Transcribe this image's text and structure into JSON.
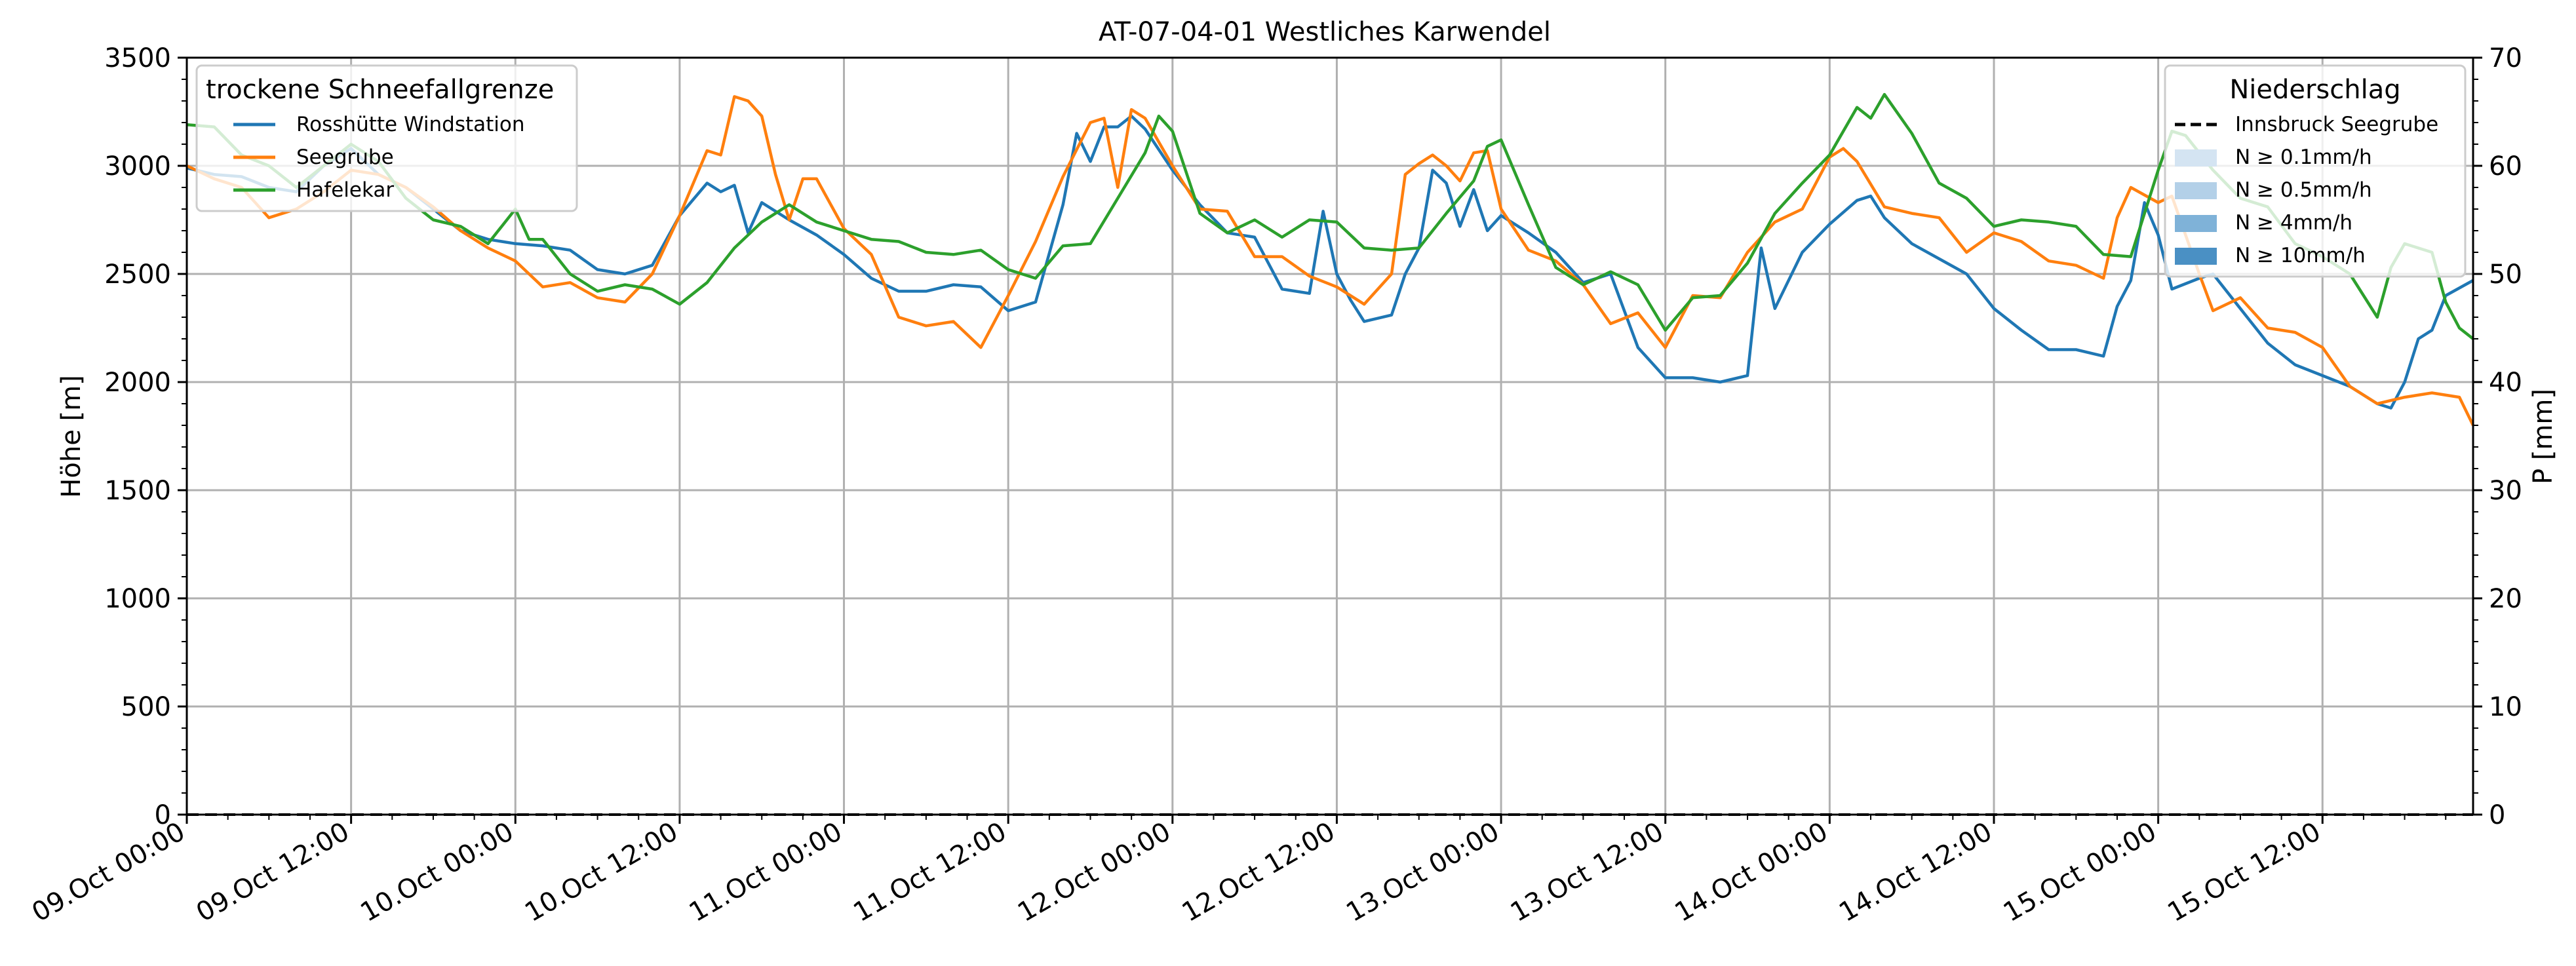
{
  "chart_data": {
    "type": "line",
    "title": "AT-07-04-01 Westliches Karwendel",
    "ylabel": "Höhe [m]",
    "y2label": "P [mm]",
    "ylim": [
      0,
      3500
    ],
    "y2lim": [
      0,
      70
    ],
    "yticks": [
      0,
      500,
      1000,
      1500,
      2000,
      2500,
      3000,
      3500
    ],
    "y2ticks": [
      0,
      10,
      20,
      30,
      40,
      50,
      60,
      70
    ],
    "xlim_hours": [
      0,
      167
    ],
    "xticks": [
      {
        "h": 0,
        "label": "09.Oct 00:00"
      },
      {
        "h": 12,
        "label": "09.Oct 12:00"
      },
      {
        "h": 24,
        "label": "10.Oct 00:00"
      },
      {
        "h": 36,
        "label": "10.Oct 12:00"
      },
      {
        "h": 48,
        "label": "11.Oct 00:00"
      },
      {
        "h": 60,
        "label": "11.Oct 12:00"
      },
      {
        "h": 72,
        "label": "12.Oct 00:00"
      },
      {
        "h": 84,
        "label": "12.Oct 12:00"
      },
      {
        "h": 96,
        "label": "13.Oct 00:00"
      },
      {
        "h": 108,
        "label": "13.Oct 12:00"
      },
      {
        "h": 120,
        "label": "14.Oct 00:00"
      },
      {
        "h": 132,
        "label": "14.Oct 12:00"
      },
      {
        "h": 144,
        "label": "15.Oct 00:00"
      },
      {
        "h": 156,
        "label": "15.Oct 12:00"
      }
    ],
    "grid": true,
    "legend_left": {
      "title": "trockene Schneefallgrenze",
      "placement": "top-left",
      "entries": [
        "Rosshütte Windstation",
        "Seegrube",
        "Hafelekar"
      ]
    },
    "legend_right": {
      "title": "Niederschlag",
      "placement": "top-right",
      "entries": [
        {
          "label": "Innsbruck Seegrube",
          "style": "dashed",
          "color": "#000000"
        },
        {
          "label": "N ≥ 0.1mm/h",
          "color": "#d4e4f2"
        },
        {
          "label": "N ≥ 0.5mm/h",
          "color": "#b3d0e8"
        },
        {
          "label": "N ≥ 4mm/h",
          "color": "#7fb2d8"
        },
        {
          "label": "N ≥ 10mm/h",
          "color": "#4a90c4"
        }
      ]
    },
    "precipitation": {
      "name": "Innsbruck Seegrube",
      "values_mm": [
        0,
        0
      ]
    },
    "series": [
      {
        "name": "Rosshütte Windstation",
        "color": "#1f77b4",
        "points": [
          [
            0,
            2990
          ],
          [
            2,
            2960
          ],
          [
            4,
            2950
          ],
          [
            6,
            2900
          ],
          [
            8,
            2880
          ],
          [
            10,
            3000
          ],
          [
            12,
            3080
          ],
          [
            14,
            2960
          ],
          [
            16,
            2900
          ],
          [
            18,
            2800
          ],
          [
            20,
            2700
          ],
          [
            22,
            2660
          ],
          [
            24,
            2640
          ],
          [
            26,
            2630
          ],
          [
            28,
            2610
          ],
          [
            30,
            2520
          ],
          [
            32,
            2500
          ],
          [
            34,
            2540
          ],
          [
            36,
            2770
          ],
          [
            38,
            2920
          ],
          [
            39,
            2880
          ],
          [
            40,
            2910
          ],
          [
            41,
            2690
          ],
          [
            42,
            2830
          ],
          [
            44,
            2750
          ],
          [
            46,
            2680
          ],
          [
            48,
            2590
          ],
          [
            50,
            2480
          ],
          [
            52,
            2420
          ],
          [
            54,
            2420
          ],
          [
            56,
            2450
          ],
          [
            58,
            2440
          ],
          [
            60,
            2330
          ],
          [
            62,
            2370
          ],
          [
            64,
            2820
          ],
          [
            65,
            3150
          ],
          [
            66,
            3020
          ],
          [
            67,
            3180
          ],
          [
            68,
            3180
          ],
          [
            69,
            3230
          ],
          [
            70,
            3170
          ],
          [
            72,
            2980
          ],
          [
            74,
            2820
          ],
          [
            76,
            2690
          ],
          [
            78,
            2670
          ],
          [
            80,
            2430
          ],
          [
            82,
            2410
          ],
          [
            83,
            2790
          ],
          [
            84,
            2500
          ],
          [
            85,
            2380
          ],
          [
            86,
            2280
          ],
          [
            88,
            2310
          ],
          [
            89,
            2500
          ],
          [
            90,
            2620
          ],
          [
            91,
            2980
          ],
          [
            92,
            2920
          ],
          [
            93,
            2720
          ],
          [
            94,
            2890
          ],
          [
            95,
            2700
          ],
          [
            96,
            2770
          ],
          [
            98,
            2690
          ],
          [
            100,
            2600
          ],
          [
            102,
            2460
          ],
          [
            104,
            2500
          ],
          [
            106,
            2160
          ],
          [
            108,
            2020
          ],
          [
            110,
            2020
          ],
          [
            112,
            2000
          ],
          [
            114,
            2030
          ],
          [
            115,
            2620
          ],
          [
            116,
            2340
          ],
          [
            118,
            2600
          ],
          [
            120,
            2730
          ],
          [
            122,
            2840
          ],
          [
            123,
            2860
          ],
          [
            124,
            2760
          ],
          [
            126,
            2640
          ],
          [
            128,
            2570
          ],
          [
            130,
            2500
          ],
          [
            132,
            2340
          ],
          [
            134,
            2240
          ],
          [
            136,
            2150
          ],
          [
            138,
            2150
          ],
          [
            140,
            2120
          ],
          [
            141,
            2350
          ],
          [
            142,
            2470
          ],
          [
            143,
            2830
          ],
          [
            144,
            2680
          ],
          [
            145,
            2430
          ],
          [
            147,
            2480
          ],
          [
            148,
            2500
          ],
          [
            150,
            2340
          ],
          [
            152,
            2180
          ],
          [
            154,
            2080
          ],
          [
            156,
            2030
          ],
          [
            158,
            1980
          ],
          [
            160,
            1900
          ],
          [
            161,
            1880
          ],
          [
            162,
            2000
          ],
          [
            163,
            2200
          ],
          [
            164,
            2240
          ],
          [
            165,
            2400
          ],
          [
            167,
            2470
          ]
        ]
      },
      {
        "name": "Seegrube",
        "color": "#ff7f0e",
        "points": [
          [
            0,
            3000
          ],
          [
            2,
            2940
          ],
          [
            4,
            2900
          ],
          [
            6,
            2760
          ],
          [
            8,
            2800
          ],
          [
            10,
            2880
          ],
          [
            12,
            2980
          ],
          [
            14,
            2960
          ],
          [
            16,
            2900
          ],
          [
            18,
            2810
          ],
          [
            20,
            2700
          ],
          [
            22,
            2620
          ],
          [
            24,
            2560
          ],
          [
            26,
            2440
          ],
          [
            28,
            2460
          ],
          [
            30,
            2390
          ],
          [
            32,
            2370
          ],
          [
            34,
            2500
          ],
          [
            36,
            2770
          ],
          [
            38,
            3070
          ],
          [
            39,
            3050
          ],
          [
            40,
            3320
          ],
          [
            41,
            3300
          ],
          [
            42,
            3230
          ],
          [
            43,
            2960
          ],
          [
            44,
            2750
          ],
          [
            45,
            2940
          ],
          [
            46,
            2940
          ],
          [
            48,
            2710
          ],
          [
            50,
            2590
          ],
          [
            52,
            2300
          ],
          [
            54,
            2260
          ],
          [
            56,
            2280
          ],
          [
            58,
            2160
          ],
          [
            60,
            2400
          ],
          [
            62,
            2650
          ],
          [
            64,
            2950
          ],
          [
            66,
            3200
          ],
          [
            67,
            3220
          ],
          [
            68,
            2900
          ],
          [
            69,
            3260
          ],
          [
            70,
            3220
          ],
          [
            72,
            3000
          ],
          [
            74,
            2800
          ],
          [
            76,
            2790
          ],
          [
            78,
            2580
          ],
          [
            80,
            2580
          ],
          [
            82,
            2490
          ],
          [
            84,
            2440
          ],
          [
            86,
            2360
          ],
          [
            88,
            2500
          ],
          [
            89,
            2960
          ],
          [
            90,
            3010
          ],
          [
            91,
            3050
          ],
          [
            92,
            3000
          ],
          [
            93,
            2930
          ],
          [
            94,
            3060
          ],
          [
            95,
            3070
          ],
          [
            96,
            2800
          ],
          [
            98,
            2610
          ],
          [
            100,
            2560
          ],
          [
            102,
            2450
          ],
          [
            104,
            2270
          ],
          [
            106,
            2320
          ],
          [
            108,
            2160
          ],
          [
            110,
            2400
          ],
          [
            112,
            2390
          ],
          [
            114,
            2600
          ],
          [
            116,
            2740
          ],
          [
            118,
            2800
          ],
          [
            120,
            3040
          ],
          [
            121,
            3080
          ],
          [
            122,
            3020
          ],
          [
            124,
            2810
          ],
          [
            126,
            2780
          ],
          [
            128,
            2760
          ],
          [
            130,
            2600
          ],
          [
            132,
            2690
          ],
          [
            134,
            2650
          ],
          [
            136,
            2560
          ],
          [
            138,
            2540
          ],
          [
            140,
            2480
          ],
          [
            141,
            2760
          ],
          [
            142,
            2900
          ],
          [
            144,
            2830
          ],
          [
            145,
            2860
          ],
          [
            147,
            2500
          ],
          [
            148,
            2330
          ],
          [
            150,
            2390
          ],
          [
            152,
            2250
          ],
          [
            154,
            2230
          ],
          [
            156,
            2160
          ],
          [
            158,
            1980
          ],
          [
            160,
            1900
          ],
          [
            162,
            1930
          ],
          [
            164,
            1950
          ],
          [
            166,
            1930
          ],
          [
            167,
            1800
          ]
        ]
      },
      {
        "name": "Hafelekar",
        "color": "#2ca02c",
        "points": [
          [
            0,
            3190
          ],
          [
            2,
            3180
          ],
          [
            4,
            3050
          ],
          [
            6,
            3000
          ],
          [
            8,
            2900
          ],
          [
            10,
            3000
          ],
          [
            12,
            3100
          ],
          [
            14,
            3020
          ],
          [
            16,
            2850
          ],
          [
            18,
            2750
          ],
          [
            20,
            2720
          ],
          [
            22,
            2640
          ],
          [
            24,
            2800
          ],
          [
            25,
            2660
          ],
          [
            26,
            2660
          ],
          [
            28,
            2500
          ],
          [
            30,
            2420
          ],
          [
            32,
            2450
          ],
          [
            34,
            2430
          ],
          [
            36,
            2360
          ],
          [
            38,
            2460
          ],
          [
            40,
            2620
          ],
          [
            42,
            2740
          ],
          [
            44,
            2820
          ],
          [
            46,
            2740
          ],
          [
            48,
            2700
          ],
          [
            50,
            2660
          ],
          [
            52,
            2650
          ],
          [
            54,
            2600
          ],
          [
            56,
            2590
          ],
          [
            58,
            2610
          ],
          [
            60,
            2520
          ],
          [
            62,
            2480
          ],
          [
            64,
            2630
          ],
          [
            66,
            2640
          ],
          [
            68,
            2850
          ],
          [
            70,
            3060
          ],
          [
            71,
            3230
          ],
          [
            72,
            3160
          ],
          [
            74,
            2780
          ],
          [
            76,
            2690
          ],
          [
            78,
            2750
          ],
          [
            80,
            2670
          ],
          [
            82,
            2750
          ],
          [
            84,
            2740
          ],
          [
            86,
            2620
          ],
          [
            88,
            2610
          ],
          [
            90,
            2620
          ],
          [
            92,
            2780
          ],
          [
            94,
            2930
          ],
          [
            95,
            3090
          ],
          [
            96,
            3120
          ],
          [
            98,
            2820
          ],
          [
            100,
            2530
          ],
          [
            102,
            2450
          ],
          [
            104,
            2510
          ],
          [
            106,
            2450
          ],
          [
            108,
            2240
          ],
          [
            110,
            2390
          ],
          [
            112,
            2400
          ],
          [
            114,
            2550
          ],
          [
            116,
            2780
          ],
          [
            118,
            2920
          ],
          [
            120,
            3050
          ],
          [
            122,
            3270
          ],
          [
            123,
            3220
          ],
          [
            124,
            3330
          ],
          [
            126,
            3150
          ],
          [
            128,
            2920
          ],
          [
            130,
            2850
          ],
          [
            132,
            2720
          ],
          [
            134,
            2750
          ],
          [
            136,
            2740
          ],
          [
            138,
            2720
          ],
          [
            140,
            2590
          ],
          [
            142,
            2580
          ],
          [
            144,
            2980
          ],
          [
            145,
            3160
          ],
          [
            146,
            3140
          ],
          [
            148,
            2980
          ],
          [
            150,
            2850
          ],
          [
            152,
            2810
          ],
          [
            154,
            2640
          ],
          [
            156,
            2580
          ],
          [
            158,
            2500
          ],
          [
            160,
            2300
          ],
          [
            161,
            2530
          ],
          [
            162,
            2640
          ],
          [
            164,
            2600
          ],
          [
            165,
            2370
          ],
          [
            166,
            2250
          ],
          [
            167,
            2200
          ]
        ]
      }
    ]
  }
}
